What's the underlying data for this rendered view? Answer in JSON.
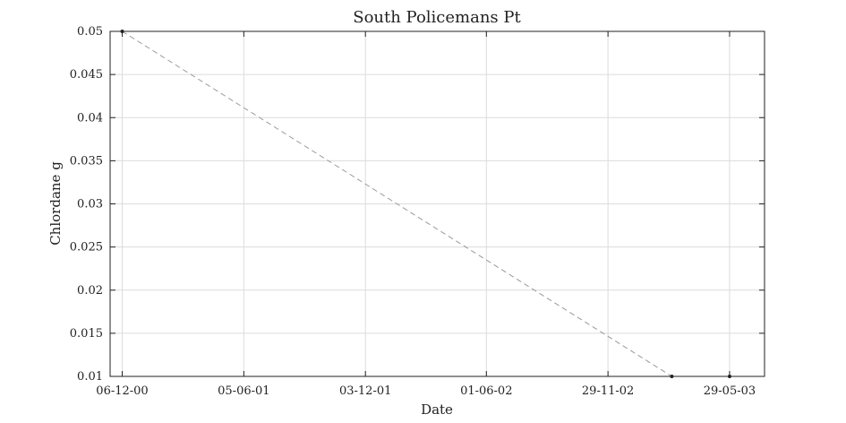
{
  "chart_data": {
    "type": "line",
    "title": "South Policemans Pt",
    "xlabel": "Date",
    "ylabel": "Chlordane g",
    "x_ticks": [
      "06-12-00",
      "05-06-01",
      "03-12-01",
      "01-06-02",
      "29-11-02",
      "29-05-03"
    ],
    "xlim": [
      "2000-11-18",
      "2003-07-20"
    ],
    "ylim": [
      0.01,
      0.05
    ],
    "y_ticks": [
      "0.01",
      "0.015",
      "0.02",
      "0.025",
      "0.03",
      "0.035",
      "0.04",
      "0.045",
      "0.05"
    ],
    "grid": true,
    "series": [
      {
        "x": [
          "2000-12-06",
          "2003-03-04",
          "2003-05-29"
        ],
        "values": [
          0.05,
          0.01,
          0.01
        ],
        "line_style": "dashed",
        "line_color": "#9a9a9a",
        "marker_color": "#222222"
      }
    ]
  }
}
